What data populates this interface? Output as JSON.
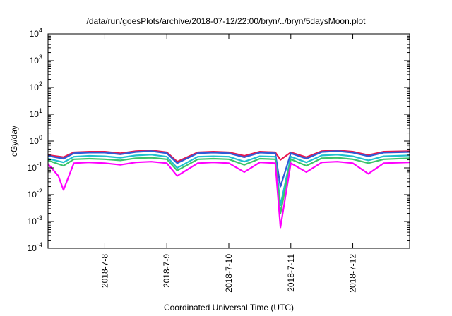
{
  "chart_data": {
    "type": "line",
    "title": "/data/run/goesPlots/archive/2018-07-12/22:00/bryn/../bryn/5daysMoon.plot",
    "xlabel": "Coordinated Universal Time (UTC)",
    "ylabel": "cGy/day",
    "yscale": "log",
    "ylim": [
      0.0001,
      10000
    ],
    "xlim": [
      "2018-07-07T02:00",
      "2018-07-12T22:00"
    ],
    "y_ticks": [
      {
        "value": 0.0001,
        "base": "10",
        "exp": "-4"
      },
      {
        "value": 0.001,
        "base": "10",
        "exp": "-3"
      },
      {
        "value": 0.01,
        "base": "10",
        "exp": "-2"
      },
      {
        "value": 0.1,
        "base": "10",
        "exp": "-1"
      },
      {
        "value": 1,
        "base": "10",
        "exp": "0"
      },
      {
        "value": 10,
        "base": "10",
        "exp": "1"
      },
      {
        "value": 100,
        "base": "10",
        "exp": "2"
      },
      {
        "value": 1000,
        "base": "10",
        "exp": "3"
      },
      {
        "value": 10000,
        "base": "10",
        "exp": "4"
      }
    ],
    "x_ticks": [
      {
        "value": "2018-07-08T00:00",
        "label": "2018-7-8"
      },
      {
        "value": "2018-07-09T00:00",
        "label": "2018-7-9"
      },
      {
        "value": "2018-07-10T00:00",
        "label": "2018-7-10"
      },
      {
        "value": "2018-07-11T00:00",
        "label": "2018-7-11"
      },
      {
        "value": "2018-07-12T00:00",
        "label": "2018-7-12"
      }
    ],
    "grid": false,
    "legend": "none",
    "series": [
      {
        "color": "#e8174f",
        "values": [
          [
            "2018-07-07T02:00",
            0.3
          ],
          [
            "2018-07-07T08:00",
            0.25
          ],
          [
            "2018-07-07T12:00",
            0.38
          ],
          [
            "2018-07-07T18:00",
            0.4
          ],
          [
            "2018-07-08T00:00",
            0.4
          ],
          [
            "2018-07-08T06:00",
            0.35
          ],
          [
            "2018-07-08T12:00",
            0.42
          ],
          [
            "2018-07-08T18:00",
            0.45
          ],
          [
            "2018-07-09T00:00",
            0.38
          ],
          [
            "2018-07-09T04:00",
            0.17
          ],
          [
            "2018-07-09T12:00",
            0.38
          ],
          [
            "2018-07-09T18:00",
            0.4
          ],
          [
            "2018-07-10T00:00",
            0.38
          ],
          [
            "2018-07-10T06:00",
            0.28
          ],
          [
            "2018-07-10T12:00",
            0.4
          ],
          [
            "2018-07-10T18:00",
            0.38
          ],
          [
            "2018-07-10T20:00",
            0.2
          ],
          [
            "2018-07-11T00:00",
            0.38
          ],
          [
            "2018-07-11T06:00",
            0.25
          ],
          [
            "2018-07-11T12:00",
            0.42
          ],
          [
            "2018-07-11T18:00",
            0.45
          ],
          [
            "2018-07-12T00:00",
            0.4
          ],
          [
            "2018-07-12T06:00",
            0.3
          ],
          [
            "2018-07-12T12:00",
            0.4
          ],
          [
            "2018-07-12T22:00",
            0.42
          ]
        ]
      },
      {
        "color": "#2f5bd6",
        "values": [
          [
            "2018-07-07T02:00",
            0.28
          ],
          [
            "2018-07-07T08:00",
            0.22
          ],
          [
            "2018-07-07T12:00",
            0.35
          ],
          [
            "2018-07-07T18:00",
            0.37
          ],
          [
            "2018-07-08T00:00",
            0.37
          ],
          [
            "2018-07-08T06:00",
            0.32
          ],
          [
            "2018-07-08T12:00",
            0.39
          ],
          [
            "2018-07-08T18:00",
            0.42
          ],
          [
            "2018-07-09T00:00",
            0.35
          ],
          [
            "2018-07-09T04:00",
            0.15
          ],
          [
            "2018-07-09T12:00",
            0.35
          ],
          [
            "2018-07-09T18:00",
            0.37
          ],
          [
            "2018-07-10T00:00",
            0.35
          ],
          [
            "2018-07-10T06:00",
            0.25
          ],
          [
            "2018-07-10T12:00",
            0.37
          ],
          [
            "2018-07-10T18:00",
            0.35
          ],
          [
            "2018-07-10T20:00",
            0.02
          ],
          [
            "2018-07-11T00:00",
            0.35
          ],
          [
            "2018-07-11T06:00",
            0.22
          ],
          [
            "2018-07-11T12:00",
            0.39
          ],
          [
            "2018-07-11T18:00",
            0.42
          ],
          [
            "2018-07-12T00:00",
            0.37
          ],
          [
            "2018-07-12T06:00",
            0.27
          ],
          [
            "2018-07-12T12:00",
            0.37
          ],
          [
            "2018-07-12T22:00",
            0.39
          ]
        ]
      },
      {
        "color": "#1fbfcf",
        "values": [
          [
            "2018-07-07T02:00",
            0.22
          ],
          [
            "2018-07-07T08:00",
            0.16
          ],
          [
            "2018-07-07T12:00",
            0.26
          ],
          [
            "2018-07-07T18:00",
            0.28
          ],
          [
            "2018-07-08T00:00",
            0.27
          ],
          [
            "2018-07-08T06:00",
            0.24
          ],
          [
            "2018-07-08T12:00",
            0.29
          ],
          [
            "2018-07-08T18:00",
            0.31
          ],
          [
            "2018-07-09T00:00",
            0.26
          ],
          [
            "2018-07-09T04:00",
            0.1
          ],
          [
            "2018-07-09T12:00",
            0.26
          ],
          [
            "2018-07-09T18:00",
            0.27
          ],
          [
            "2018-07-10T00:00",
            0.26
          ],
          [
            "2018-07-10T06:00",
            0.17
          ],
          [
            "2018-07-10T12:00",
            0.27
          ],
          [
            "2018-07-10T18:00",
            0.26
          ],
          [
            "2018-07-10T20:00",
            0.004
          ],
          [
            "2018-07-11T00:00",
            0.26
          ],
          [
            "2018-07-11T06:00",
            0.16
          ],
          [
            "2018-07-11T12:00",
            0.29
          ],
          [
            "2018-07-11T18:00",
            0.31
          ],
          [
            "2018-07-12T00:00",
            0.27
          ],
          [
            "2018-07-12T06:00",
            0.19
          ],
          [
            "2018-07-12T12:00",
            0.27
          ],
          [
            "2018-07-12T22:00",
            0.29
          ]
        ]
      },
      {
        "color": "#3cc46a",
        "values": [
          [
            "2018-07-07T02:00",
            0.19
          ],
          [
            "2018-07-07T08:00",
            0.12
          ],
          [
            "2018-07-07T12:00",
            0.21
          ],
          [
            "2018-07-07T18:00",
            0.22
          ],
          [
            "2018-07-08T00:00",
            0.21
          ],
          [
            "2018-07-08T06:00",
            0.19
          ],
          [
            "2018-07-08T12:00",
            0.23
          ],
          [
            "2018-07-08T18:00",
            0.24
          ],
          [
            "2018-07-09T00:00",
            0.21
          ],
          [
            "2018-07-09T04:00",
            0.08
          ],
          [
            "2018-07-09T12:00",
            0.21
          ],
          [
            "2018-07-09T18:00",
            0.22
          ],
          [
            "2018-07-10T00:00",
            0.21
          ],
          [
            "2018-07-10T06:00",
            0.13
          ],
          [
            "2018-07-10T12:00",
            0.22
          ],
          [
            "2018-07-10T18:00",
            0.21
          ],
          [
            "2018-07-10T20:00",
            0.002
          ],
          [
            "2018-07-11T00:00",
            0.21
          ],
          [
            "2018-07-11T06:00",
            0.12
          ],
          [
            "2018-07-11T12:00",
            0.23
          ],
          [
            "2018-07-11T18:00",
            0.24
          ],
          [
            "2018-07-12T00:00",
            0.21
          ],
          [
            "2018-07-12T06:00",
            0.15
          ],
          [
            "2018-07-12T12:00",
            0.21
          ],
          [
            "2018-07-12T22:00",
            0.23
          ]
        ]
      },
      {
        "color": "#ff00ff",
        "values": [
          [
            "2018-07-07T02:00",
            0.14
          ],
          [
            "2018-07-07T06:00",
            0.05
          ],
          [
            "2018-07-07T08:00",
            0.015
          ],
          [
            "2018-07-07T12:00",
            0.15
          ],
          [
            "2018-07-07T18:00",
            0.16
          ],
          [
            "2018-07-08T00:00",
            0.15
          ],
          [
            "2018-07-08T06:00",
            0.13
          ],
          [
            "2018-07-08T12:00",
            0.16
          ],
          [
            "2018-07-08T18:00",
            0.17
          ],
          [
            "2018-07-09T00:00",
            0.15
          ],
          [
            "2018-07-09T04:00",
            0.05
          ],
          [
            "2018-07-09T12:00",
            0.15
          ],
          [
            "2018-07-09T18:00",
            0.16
          ],
          [
            "2018-07-10T00:00",
            0.15
          ],
          [
            "2018-07-10T06:00",
            0.07
          ],
          [
            "2018-07-10T12:00",
            0.16
          ],
          [
            "2018-07-10T18:00",
            0.15
          ],
          [
            "2018-07-10T20:00",
            0.0006
          ],
          [
            "2018-07-11T00:00",
            0.15
          ],
          [
            "2018-07-11T06:00",
            0.07
          ],
          [
            "2018-07-11T12:00",
            0.16
          ],
          [
            "2018-07-11T18:00",
            0.17
          ],
          [
            "2018-07-12T00:00",
            0.15
          ],
          [
            "2018-07-12T06:00",
            0.06
          ],
          [
            "2018-07-12T12:00",
            0.15
          ],
          [
            "2018-07-12T22:00",
            0.16
          ]
        ]
      }
    ]
  }
}
